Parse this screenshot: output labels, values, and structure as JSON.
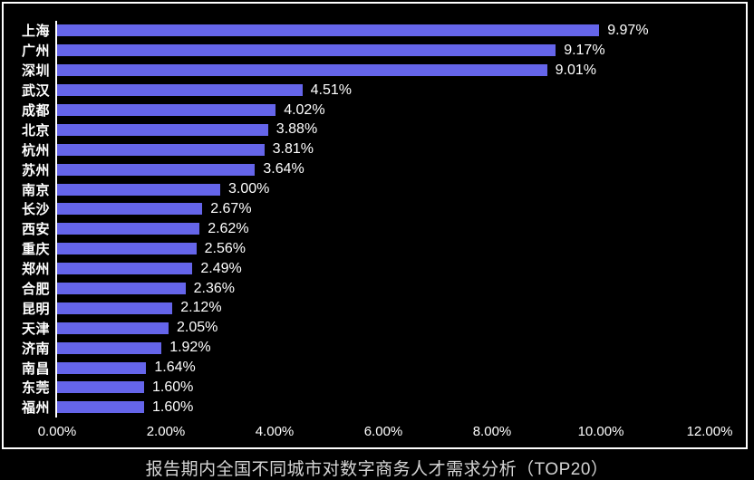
{
  "colors": {
    "background": "#000000",
    "bar": "#6565ea",
    "text": "#ffffff",
    "axis": "#ffffff",
    "title_text": "#d4d4d4"
  },
  "chart_data": {
    "type": "bar",
    "orientation": "horizontal",
    "title": "报告期内全国不同城市对数字商务人才需求分析（TOP20）",
    "categories": [
      "上海",
      "广州",
      "深圳",
      "武汉",
      "成都",
      "北京",
      "杭州",
      "苏州",
      "南京",
      "长沙",
      "西安",
      "重庆",
      "郑州",
      "合肥",
      "昆明",
      "天津",
      "济南",
      "南昌",
      "东莞",
      "福州"
    ],
    "values": [
      9.97,
      9.17,
      9.01,
      4.51,
      4.02,
      3.88,
      3.81,
      3.64,
      3.0,
      2.67,
      2.62,
      2.56,
      2.49,
      2.36,
      2.12,
      2.05,
      1.92,
      1.64,
      1.6,
      1.6
    ],
    "value_labels": [
      "9.97%",
      "9.17%",
      "9.01%",
      "4.51%",
      "4.02%",
      "3.88%",
      "3.81%",
      "3.64%",
      "3.00%",
      "2.67%",
      "2.62%",
      "2.56%",
      "2.49%",
      "2.36%",
      "2.12%",
      "2.05%",
      "1.92%",
      "1.64%",
      "1.60%",
      "1.60%"
    ],
    "x_ticks": [
      "0.00%",
      "2.00%",
      "4.00%",
      "6.00%",
      "8.00%",
      "10.00%",
      "12.00%"
    ],
    "xlim": [
      0,
      12
    ],
    "grid": false,
    "legend": false
  }
}
